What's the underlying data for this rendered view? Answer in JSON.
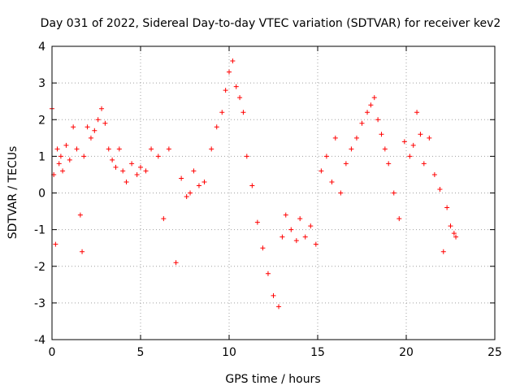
{
  "chart_data": {
    "type": "scatter",
    "title": "Day 031 of 2022, Sidereal Day-to-day VTEC variation (SDTVAR) for receiver kev2",
    "xlabel": "GPS time / hours",
    "ylabel": "SDTVAR / TECUs",
    "xlim": [
      0,
      25
    ],
    "ylim": [
      -4,
      4
    ],
    "x_ticks": [
      0,
      5,
      10,
      15,
      20,
      25
    ],
    "y_ticks": [
      -4,
      -3,
      -2,
      -1,
      0,
      1,
      2,
      3,
      4
    ],
    "grid": true,
    "marker": "+",
    "series": [
      {
        "name": "SDTVAR kev2",
        "color": "#ff0000",
        "x": [
          0.0,
          0.1,
          0.2,
          0.3,
          0.4,
          0.5,
          0.6,
          0.8,
          1.0,
          1.2,
          1.4,
          1.6,
          1.7,
          1.8,
          2.0,
          2.2,
          2.4,
          2.6,
          2.8,
          3.0,
          3.2,
          3.4,
          3.6,
          3.8,
          4.0,
          4.2,
          4.5,
          4.8,
          5.0,
          5.3,
          5.6,
          6.0,
          6.3,
          6.6,
          7.0,
          7.3,
          7.6,
          7.8,
          8.0,
          8.3,
          8.6,
          9.0,
          9.3,
          9.6,
          9.8,
          10.0,
          10.2,
          10.4,
          10.6,
          10.8,
          11.0,
          11.3,
          11.6,
          11.9,
          12.2,
          12.5,
          12.8,
          13.0,
          13.2,
          13.5,
          13.8,
          14.0,
          14.3,
          14.6,
          14.9,
          15.2,
          15.5,
          15.8,
          16.0,
          16.3,
          16.6,
          16.9,
          17.2,
          17.5,
          17.8,
          18.0,
          18.2,
          18.4,
          18.6,
          18.8,
          19.0,
          19.3,
          19.6,
          19.9,
          20.2,
          20.4,
          20.6,
          20.8,
          21.0,
          21.3,
          21.6,
          21.9,
          22.1,
          22.3,
          22.5,
          22.7,
          22.8
        ],
        "y": [
          2.3,
          0.5,
          -1.4,
          1.2,
          0.8,
          1.0,
          0.6,
          1.3,
          0.9,
          1.8,
          1.2,
          -0.6,
          -1.6,
          1.0,
          1.8,
          1.5,
          1.7,
          2.0,
          2.3,
          1.9,
          1.2,
          0.9,
          0.7,
          1.2,
          0.6,
          0.3,
          0.8,
          0.5,
          0.7,
          0.6,
          1.2,
          1.0,
          -0.7,
          1.2,
          -1.9,
          0.4,
          -0.1,
          0.0,
          0.6,
          0.2,
          0.3,
          1.2,
          1.8,
          2.2,
          2.8,
          3.3,
          3.6,
          2.9,
          2.6,
          2.2,
          1.0,
          0.2,
          -0.8,
          -1.5,
          -2.2,
          -2.8,
          -3.1,
          -1.2,
          -0.6,
          -1.0,
          -1.3,
          -0.7,
          -1.2,
          -0.9,
          -1.4,
          0.6,
          1.0,
          0.3,
          1.5,
          0.0,
          0.8,
          1.2,
          1.5,
          1.9,
          2.2,
          2.4,
          2.6,
          2.0,
          1.6,
          1.2,
          0.8,
          0.0,
          -0.7,
          1.4,
          1.0,
          1.3,
          2.2,
          1.6,
          0.8,
          1.5,
          0.5,
          0.1,
          -1.6,
          -0.4,
          -0.9,
          -1.1,
          -1.2
        ]
      }
    ]
  }
}
